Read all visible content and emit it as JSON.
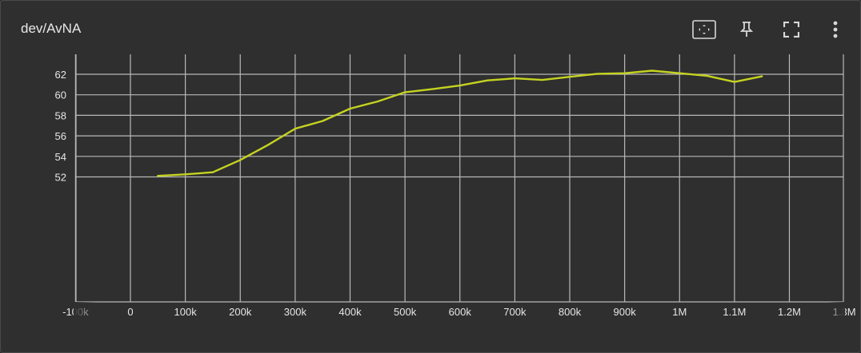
{
  "card": {
    "title": "dev/AvNA"
  },
  "toolbar": {
    "buttons": [
      {
        "name": "fit-domain-button",
        "icon": "fit-to-data-icon"
      },
      {
        "name": "pin-button",
        "icon": "pin-icon"
      },
      {
        "name": "fullscreen-button",
        "icon": "fullscreen-icon"
      },
      {
        "name": "more-options-button",
        "icon": "more-vert-icon"
      }
    ]
  },
  "colors": {
    "background": "#2f2f2f",
    "grid": "#b8b8b8",
    "series": "#c5d320",
    "icon": "#d8d8d8"
  },
  "chart_data": {
    "type": "line",
    "title": "dev/AvNA",
    "xlabel": "",
    "ylabel": "",
    "grid": true,
    "xlim": [
      -100000,
      1300000
    ],
    "ylim": [
      51,
      63.3
    ],
    "xticks": [
      {
        "value": -100000,
        "label": "-100k"
      },
      {
        "value": 0,
        "label": "0"
      },
      {
        "value": 100000,
        "label": "100k"
      },
      {
        "value": 200000,
        "label": "200k"
      },
      {
        "value": 300000,
        "label": "300k"
      },
      {
        "value": 400000,
        "label": "400k"
      },
      {
        "value": 500000,
        "label": "500k"
      },
      {
        "value": 600000,
        "label": "600k"
      },
      {
        "value": 700000,
        "label": "700k"
      },
      {
        "value": 800000,
        "label": "800k"
      },
      {
        "value": 900000,
        "label": "900k"
      },
      {
        "value": 1000000,
        "label": "1M"
      },
      {
        "value": 1100000,
        "label": "1.1M"
      },
      {
        "value": 1200000,
        "label": "1.2M"
      },
      {
        "value": 1300000,
        "label": "1.3M"
      }
    ],
    "yticks": [
      52,
      54,
      56,
      58,
      60,
      62
    ],
    "series": [
      {
        "x": [
          50000,
          100000,
          150000,
          200000,
          250000,
          300000,
          350000,
          400000,
          450000,
          500000,
          550000,
          600000,
          650000,
          700000,
          750000,
          800000,
          850000,
          900000,
          950000,
          1000000,
          1050000,
          1100000,
          1150000
        ],
        "y": [
          52.1,
          52.25,
          52.45,
          53.65,
          55.1,
          56.7,
          57.45,
          58.65,
          59.35,
          60.25,
          60.55,
          60.9,
          61.4,
          61.6,
          61.45,
          61.75,
          62.05,
          62.1,
          62.35,
          62.1,
          61.85,
          61.25,
          61.8
        ]
      }
    ]
  }
}
